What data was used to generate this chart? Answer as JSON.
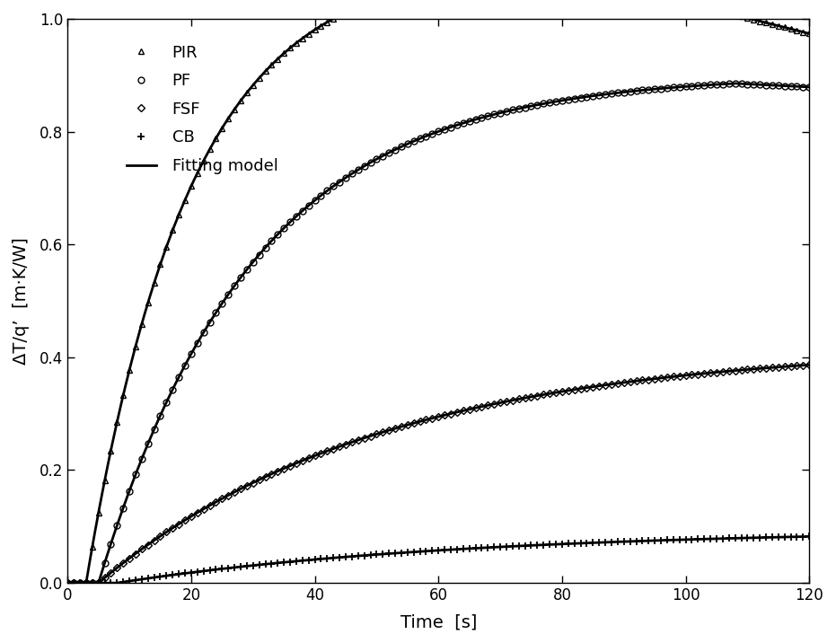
{
  "title": "",
  "xlabel": "Time  [s]",
  "ylabel": "ΔT/q’  [m·K/W]",
  "xlim": [
    0,
    120
  ],
  "ylim": [
    0,
    1.0
  ],
  "xticks": [
    0,
    20,
    40,
    60,
    80,
    100,
    120
  ],
  "yticks": [
    0.0,
    0.2,
    0.4,
    0.6,
    0.8,
    1.0
  ],
  "background_color": "#ffffff",
  "series": [
    {
      "name": "PIR",
      "marker": "^",
      "markersize": 5,
      "markerfacecolor": "none",
      "markeredgewidth": 1.0,
      "model": "pir"
    },
    {
      "name": "PF",
      "marker": "o",
      "markersize": 5,
      "markerfacecolor": "none",
      "markeredgewidth": 1.0,
      "model": "pf"
    },
    {
      "name": "FSF",
      "marker": "D",
      "markersize": 4,
      "markerfacecolor": "none",
      "markeredgewidth": 1.0,
      "model": "fsf"
    },
    {
      "name": "CB",
      "marker": "+",
      "markersize": 6,
      "markerfacecolor": "black",
      "markeredgewidth": 1.3,
      "model": "cb"
    }
  ],
  "fit_linewidth": 2.0,
  "marker_step": 1,
  "legend_fontsize": 13,
  "axis_fontsize": 14,
  "tick_fontsize": 12,
  "pir": {
    "A": 1.1,
    "k": 0.06,
    "t0": 3.0,
    "peak_t": 80,
    "decay_rate": 0.0028
  },
  "pf": {
    "A": 0.9,
    "k": 0.04,
    "t0": 5.0,
    "peak_t": 108,
    "decay_rate": 0.0006
  },
  "fsf": {
    "A": 0.42,
    "k": 0.022,
    "t0": 5.0,
    "peak_t": 999,
    "decay_rate": 0.0
  },
  "cb": {
    "A": 0.095,
    "k": 0.018,
    "t0": 8.0,
    "peak_t": 999,
    "decay_rate": 0.0
  }
}
